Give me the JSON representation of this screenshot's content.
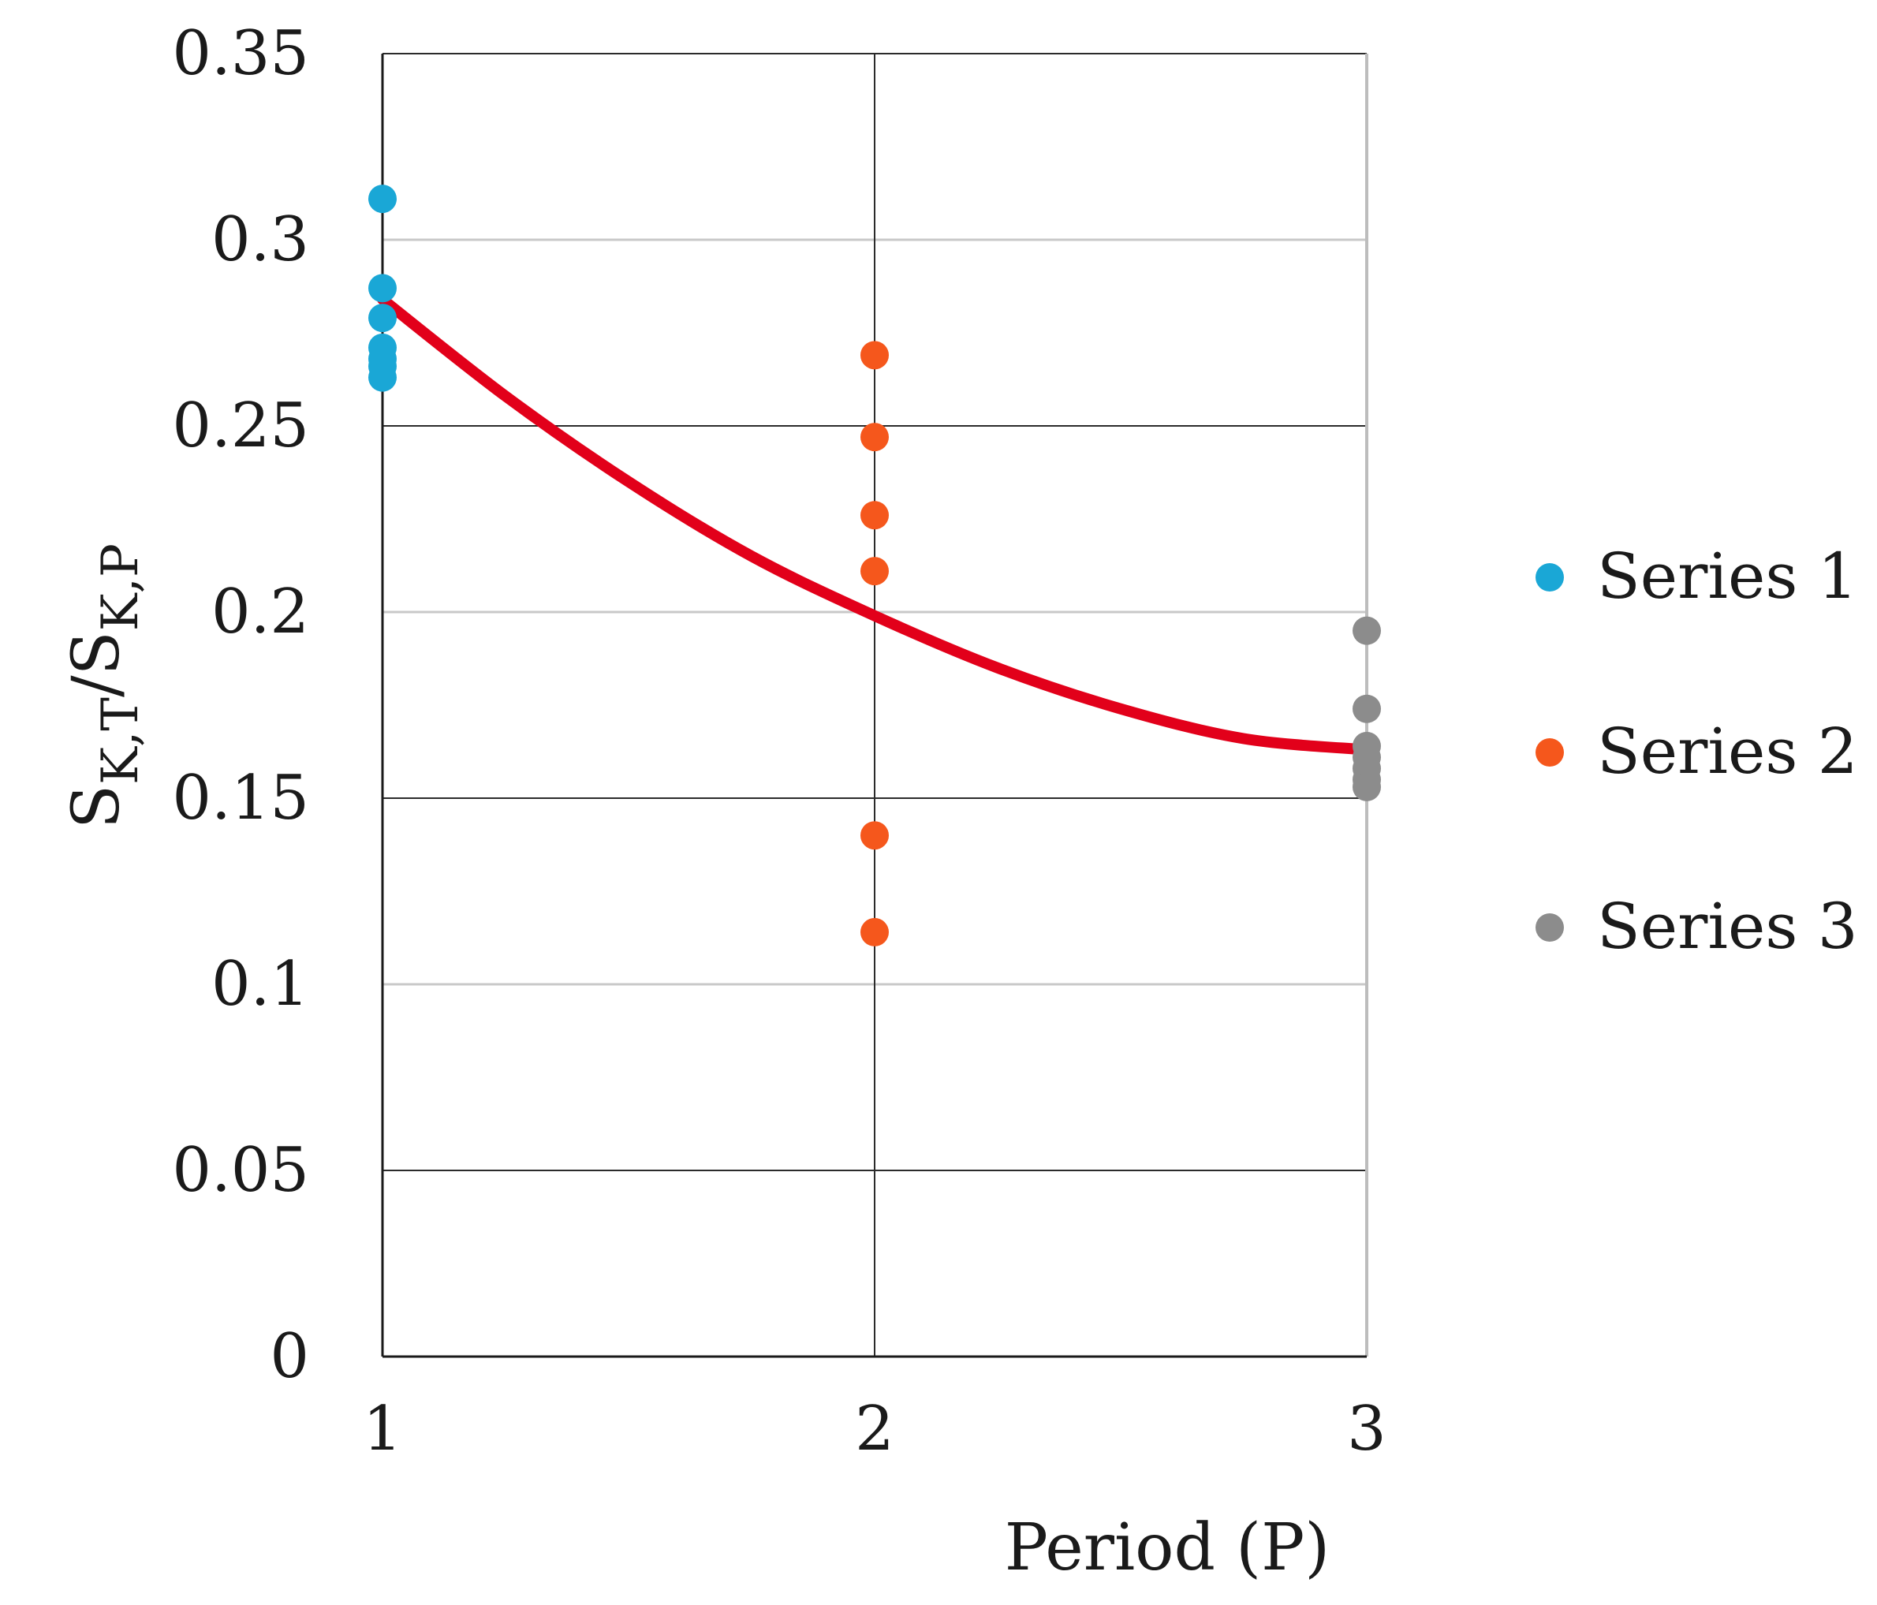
{
  "chart_data": {
    "type": "scatter",
    "title": "",
    "xlabel": "Period (P)",
    "ylabel": {
      "S": "S",
      "num_sub": "K,T",
      "slash": "/",
      "den_sub": "K,P"
    },
    "xlim": [
      1,
      3
    ],
    "ylim": [
      0,
      0.35
    ],
    "x_ticks": [
      1,
      2,
      3
    ],
    "x_tick_labels": [
      "1",
      "2",
      "3"
    ],
    "y_ticks": [
      0,
      0.05,
      0.1,
      0.15,
      0.2,
      0.25,
      0.3,
      0.35
    ],
    "y_tick_labels": [
      "0",
      "0.05",
      "0.1",
      "0.15",
      "0.2",
      "0.25",
      "0.3",
      "0.35"
    ],
    "grid": true,
    "legend_position": "right",
    "series": [
      {
        "name": "Series 1",
        "color": "#1aa7d6",
        "x": [
          1,
          1,
          1,
          1,
          1,
          1,
          1
        ],
        "y": [
          0.311,
          0.287,
          0.279,
          0.271,
          0.268,
          0.266,
          0.263
        ]
      },
      {
        "name": "Series 2",
        "color": "#f5571c",
        "x": [
          2,
          2,
          2,
          2,
          2,
          2
        ],
        "y": [
          0.269,
          0.247,
          0.226,
          0.211,
          0.14,
          0.114
        ]
      },
      {
        "name": "Series 3",
        "color": "#8c8c8c",
        "x": [
          3,
          3,
          3,
          3,
          3,
          3,
          3
        ],
        "y": [
          0.195,
          0.174,
          0.164,
          0.161,
          0.158,
          0.155,
          0.153
        ]
      }
    ],
    "trendline": {
      "name": "trendline",
      "color": "#e2001a",
      "x": [
        1,
        1.25,
        1.5,
        1.75,
        2,
        2.25,
        2.5,
        2.75,
        3
      ],
      "y": [
        0.284,
        0.258,
        0.235,
        0.215,
        0.199,
        0.185,
        0.174,
        0.166,
        0.163
      ]
    }
  }
}
